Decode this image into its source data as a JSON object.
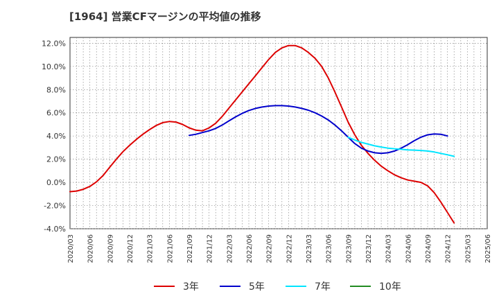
{
  "chart_data": {
    "type": "line",
    "title": "[1964]  営業CFマージンの平均値の推移",
    "xlabel": "",
    "ylabel": "",
    "ylim": [
      -4.0,
      12.5
    ],
    "yticks": [
      -4.0,
      -2.0,
      0.0,
      2.0,
      4.0,
      6.0,
      8.0,
      10.0,
      12.0
    ],
    "ytick_labels": [
      "-4.0%",
      "-2.0%",
      "0.0%",
      "2.0%",
      "4.0%",
      "6.0%",
      "8.0%",
      "10.0%",
      "12.0%"
    ],
    "x_tick_labels": [
      "2020/03",
      "2020/06",
      "2020/09",
      "2020/12",
      "2021/03",
      "2021/06",
      "2021/09",
      "2021/12",
      "2022/03",
      "2022/06",
      "2022/09",
      "2022/12",
      "2023/03",
      "2023/06",
      "2023/09",
      "2023/12",
      "2024/03",
      "2024/06",
      "2024/09",
      "2024/12",
      "2025/03",
      "2025/06"
    ],
    "grid": true,
    "legend_position": "bottom",
    "series": [
      {
        "name": "3年",
        "color": "#dd0000",
        "start_index": 0,
        "values": [
          -0.8,
          -0.75,
          -0.6,
          -0.35,
          0.05,
          0.6,
          1.3,
          2.0,
          2.65,
          3.2,
          3.7,
          4.15,
          4.55,
          4.9,
          5.15,
          5.25,
          5.2,
          5.0,
          4.7,
          4.5,
          4.45,
          4.7,
          5.1,
          5.7,
          6.4,
          7.1,
          7.8,
          8.5,
          9.2,
          9.9,
          10.6,
          11.2,
          11.6,
          11.8,
          11.8,
          11.6,
          11.2,
          10.7,
          10.0,
          9.0,
          7.8,
          6.5,
          5.2,
          4.1,
          3.2,
          2.5,
          1.9,
          1.4,
          1.0,
          0.65,
          0.4,
          0.2,
          0.1,
          0.0,
          -0.3,
          -0.9,
          -1.7,
          -2.6,
          -3.5
        ]
      },
      {
        "name": "5年",
        "color": "#0000cc",
        "start_index": 18,
        "values": [
          4.05,
          4.15,
          4.3,
          4.45,
          4.65,
          4.95,
          5.3,
          5.65,
          5.95,
          6.2,
          6.38,
          6.5,
          6.58,
          6.62,
          6.62,
          6.58,
          6.5,
          6.38,
          6.22,
          6.0,
          5.72,
          5.38,
          4.95,
          4.45,
          3.9,
          3.35,
          2.95,
          2.7,
          2.55,
          2.5,
          2.55,
          2.7,
          2.95,
          3.25,
          3.6,
          3.9,
          4.1,
          4.18,
          4.15,
          4.0
        ]
      },
      {
        "name": "7年",
        "color": "#00e5ff",
        "start_index": 42,
        "values": [
          3.9,
          3.65,
          3.45,
          3.3,
          3.15,
          3.05,
          2.95,
          2.9,
          2.85,
          2.8,
          2.78,
          2.75,
          2.7,
          2.62,
          2.5,
          2.38,
          2.25
        ]
      },
      {
        "name": "10年",
        "color": "#228b22",
        "start_index": 0,
        "values": []
      }
    ]
  }
}
